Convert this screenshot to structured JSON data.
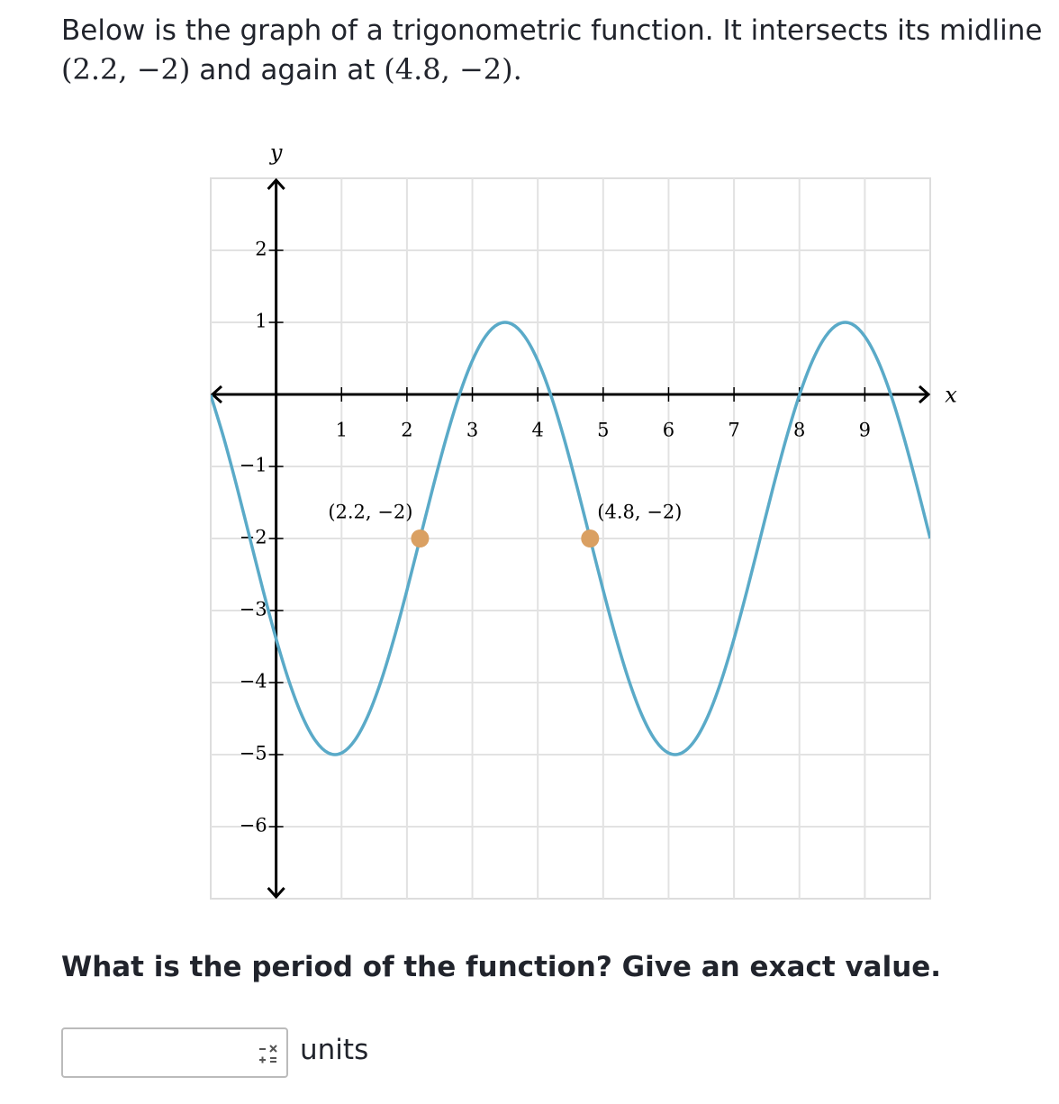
{
  "prompt": {
    "text": "Below is the graph of a trigonometric function. It intersects its midline",
    "point_a": "(2.2, −2)",
    "middle": "and again at",
    "point_b": "(4.8, −2)",
    "end": "."
  },
  "chart_data": {
    "type": "line",
    "x_label": "x",
    "y_label": "y",
    "xlim": [
      -1,
      10
    ],
    "ylim": [
      -7,
      3
    ],
    "xticks": [
      1,
      2,
      3,
      4,
      5,
      6,
      7,
      8,
      9
    ],
    "yticks": [
      2,
      1,
      {
        "value": -1,
        "label": "−1"
      },
      {
        "value": -2,
        "label": "−2"
      },
      {
        "value": -3,
        "label": "−3"
      },
      {
        "value": -4,
        "label": "−4"
      },
      {
        "value": -5,
        "label": "−5"
      },
      {
        "value": -6,
        "label": "−6"
      }
    ],
    "grid": true,
    "series": [
      {
        "type": "line",
        "color": "#5aaac8",
        "x": [
          -1,
          -0.8,
          -0.6,
          -0.4,
          -0.2,
          0,
          0.2,
          0.4,
          0.6,
          0.8,
          1,
          1.2,
          1.4,
          1.6,
          1.8,
          2,
          2.2,
          2.4,
          2.6,
          2.8,
          3,
          3.2,
          3.4,
          3.6,
          3.8,
          4,
          4.2,
          4.4,
          4.6,
          4.8,
          5,
          5.2,
          5.4,
          5.6,
          5.8,
          6,
          6.2,
          6.4,
          6.6,
          6.8,
          7,
          7.2,
          7.4,
          7.6,
          7.8,
          8,
          8.2,
          8.4,
          8.6,
          8.8,
          9,
          9.2,
          9.4,
          9.6,
          9.8,
          10
        ],
        "values": [
          -0.01,
          -0.606,
          -1.282,
          -2,
          -2.718,
          -3.394,
          -3.99,
          -4.469,
          -4.805,
          -4.978,
          -4.978,
          -4.805,
          -4.469,
          -3.99,
          -3.394,
          -2.718,
          -2,
          -1.282,
          -0.606,
          -0.01,
          0.469,
          0.805,
          0.978,
          0.978,
          0.805,
          0.469,
          -0.01,
          -0.606,
          -1.282,
          -2,
          -2.718,
          -3.394,
          -3.99,
          -4.469,
          -4.805,
          -4.978,
          -4.978,
          -4.805,
          -4.469,
          -3.99,
          -3.394,
          -2.718,
          -2,
          -1.282,
          -0.606,
          -0.01,
          0.469,
          0.805,
          0.978,
          0.978,
          0.805,
          0.469,
          -0.01,
          -0.606,
          -1.282,
          -2
        ]
      },
      {
        "type": "scatter",
        "color": "#daa062",
        "x": [
          2.2,
          4.8
        ],
        "values": [
          -2,
          -2
        ],
        "labels": [
          "(2.2, −2)",
          "(4.8, −2)"
        ]
      }
    ]
  },
  "question": "What is the period of the function? Give an exact value.",
  "answer": {
    "unit": "units"
  }
}
